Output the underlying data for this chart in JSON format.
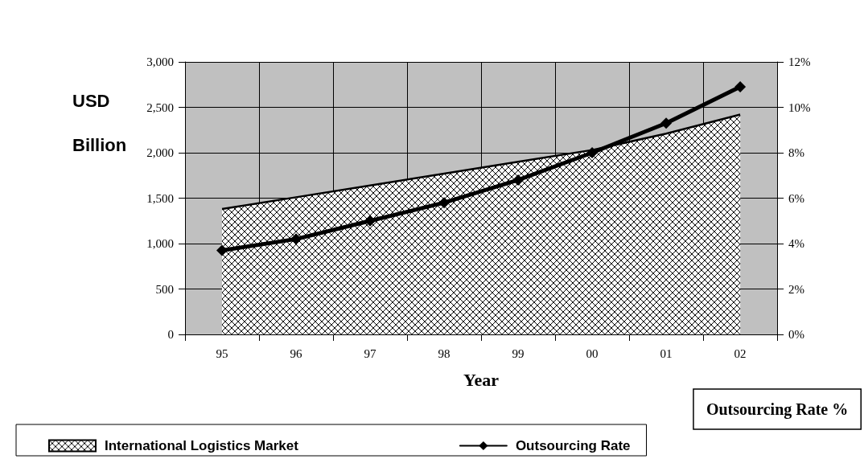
{
  "chart_data": {
    "type": "area",
    "xlabel": "Year",
    "ylabel": "USD Billion",
    "y2label": "Outsourcing Rate %",
    "categories": [
      "95",
      "96",
      "97",
      "98",
      "99",
      "00",
      "01",
      "02"
    ],
    "series": [
      {
        "name": "International Logistics Market",
        "color": "#000000",
        "values": [
          1380,
          1510,
          1640,
          1770,
          1900,
          2030,
          2210,
          2420
        ]
      },
      {
        "name": "Outsourcing Rate",
        "type": "line",
        "axis": "y2",
        "color": "#000000",
        "marker": "diamond",
        "line_style": "solid",
        "values": [
          3.7,
          4.2,
          5.0,
          5.8,
          6.8,
          8.0,
          9.3,
          10.9
        ]
      }
    ],
    "ylim": [
      0,
      3000
    ],
    "yticks": [
      {
        "value": 0,
        "label": "0"
      },
      {
        "value": 500,
        "label": "500"
      },
      {
        "value": 1000,
        "label": "1,000"
      },
      {
        "value": 1500,
        "label": "1,500"
      },
      {
        "value": 2000,
        "label": "2,000"
      },
      {
        "value": 2500,
        "label": "2,500"
      },
      {
        "value": 3000,
        "label": "3,000"
      }
    ],
    "y2lim": [
      0,
      12
    ],
    "y2ticks": [
      {
        "value": 0,
        "label": "0%"
      },
      {
        "value": 2,
        "label": "2%"
      },
      {
        "value": 4,
        "label": "4%"
      },
      {
        "value": 6,
        "label": "6%"
      },
      {
        "value": 8,
        "label": "8%"
      },
      {
        "value": 10,
        "label": "10%"
      },
      {
        "value": 12,
        "label": "12%"
      }
    ],
    "grid": true,
    "legend": "bottom"
  }
}
